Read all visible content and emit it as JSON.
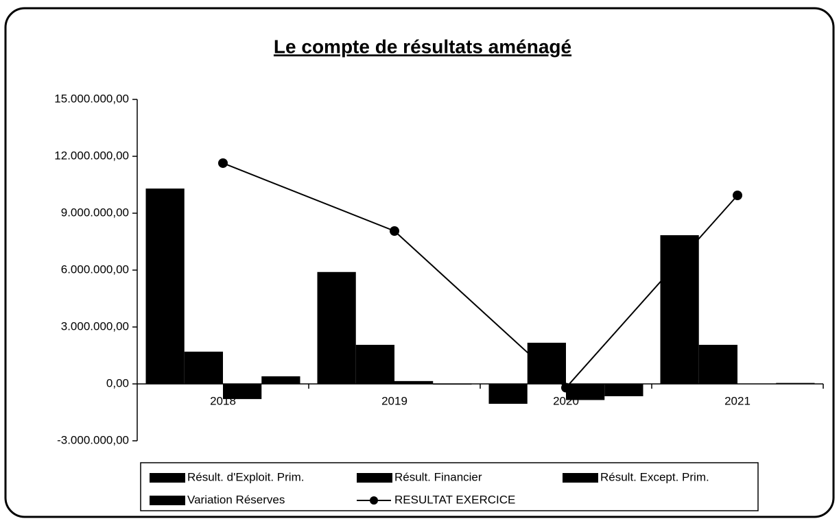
{
  "chart_data": {
    "type": "bar_line",
    "title": "Le compte de résultats aménagé",
    "categories": [
      "2018",
      "2019",
      "2020",
      "2021"
    ],
    "series": [
      {
        "name": "Résult. d'Exploit. Prim.",
        "type": "bar",
        "color": "#000000",
        "values": [
          10300000,
          5900000,
          -1050000,
          7840000
        ]
      },
      {
        "name": "Résult. Financier",
        "type": "bar",
        "color": "#000000",
        "values": [
          1700000,
          2060000,
          2170000,
          2060000
        ]
      },
      {
        "name": "Résult. Except. Prim.",
        "type": "bar",
        "color": "#000000",
        "values": [
          -800000,
          150000,
          -850000,
          20000
        ]
      },
      {
        "name": "Variation Réserves",
        "type": "bar",
        "color": "#000000",
        "values": [
          400000,
          0,
          -650000,
          50000
        ]
      },
      {
        "name": "RESULTAT EXERCICE",
        "type": "line",
        "color": "#000000",
        "values": [
          11640000,
          8060000,
          -200000,
          9940000
        ]
      }
    ],
    "ylim": [
      -3000000,
      15000000
    ],
    "yticks": [
      {
        "value": -3000000,
        "label": "-3.000.000,00"
      },
      {
        "value": 0,
        "label": "0,00"
      },
      {
        "value": 3000000,
        "label": "3.000.000,00"
      },
      {
        "value": 6000000,
        "label": "6.000.000,00"
      },
      {
        "value": 9000000,
        "label": "9.000.000,00"
      },
      {
        "value": 12000000,
        "label": "12.000.000,00"
      },
      {
        "value": 15000000,
        "label": "15.000.000,00"
      }
    ],
    "grid": false,
    "legend": "bottom"
  }
}
